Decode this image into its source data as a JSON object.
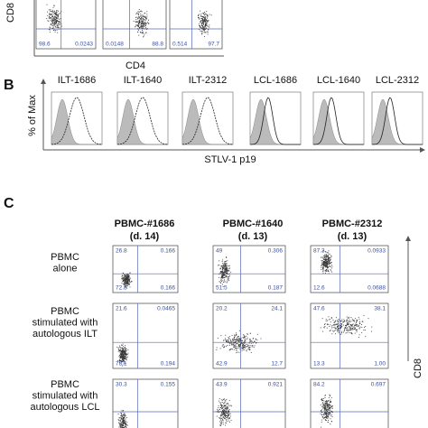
{
  "panel_a": {
    "y_label": "CD8",
    "x_label": "CD4",
    "plots": [
      {
        "lower_left": "98.6",
        "lower_right": "0.0243"
      },
      {
        "lower_left": "0.0148",
        "lower_right": "88.8"
      },
      {
        "lower_left": "0.514",
        "lower_right": "97.7"
      }
    ]
  },
  "panel_b": {
    "letter": "B",
    "y_label": "% of Max",
    "x_label": "STLV-1 p19",
    "histograms": [
      "ILT-1686",
      "ILT-1640",
      "ILT-2312",
      "LCL-1686",
      "LCL-1640",
      "LCL-2312"
    ]
  },
  "panel_c": {
    "letter": "C",
    "y_label": "CD8",
    "columns": [
      {
        "name": "PBMC-#1686",
        "day": "(d. 14)"
      },
      {
        "name": "PBMC-#1640",
        "day": "(d. 13)"
      },
      {
        "name": "PBMC-#2312",
        "day": "(d. 13)"
      }
    ],
    "rows": [
      {
        "label": [
          "PBMC",
          "alone"
        ],
        "plots": [
          {
            "upper_left": "26.8",
            "upper_right": "0.166",
            "lower_left": "72.8",
            "lower_right": "0.166"
          },
          {
            "upper_left": "49",
            "upper_right": "0.306",
            "lower_left": "51.5",
            "lower_right": "0.187"
          },
          {
            "upper_left": "87.3",
            "upper_right": "0.0933",
            "lower_left": "12.6",
            "lower_right": "0.0688"
          }
        ]
      },
      {
        "label": [
          "PBMC",
          "stimulated with",
          "autologous ILT"
        ],
        "plots": [
          {
            "upper_left": "21.6",
            "upper_right": "0.0465",
            "lower_left": "78.1",
            "lower_right": "0.194"
          },
          {
            "upper_left": "20.2",
            "upper_right": "24.1",
            "lower_left": "42.9",
            "lower_right": "12.7"
          },
          {
            "upper_left": "47.6",
            "upper_right": "38.1",
            "lower_left": "13.3",
            "lower_right": "1.00"
          }
        ]
      },
      {
        "label": [
          "PBMC",
          "stimulated with",
          "autologous LCL"
        ],
        "plots": [
          {
            "upper_left": "30.3",
            "upper_right": "0.155"
          },
          {
            "upper_left": "43.9",
            "upper_right": "0.921"
          },
          {
            "upper_left": "84.2",
            "upper_right": "0.697"
          }
        ]
      }
    ]
  }
}
